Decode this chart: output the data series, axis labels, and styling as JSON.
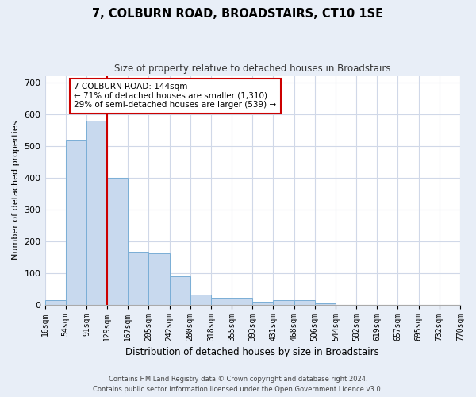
{
  "title": "7, COLBURN ROAD, BROADSTAIRS, CT10 1SE",
  "subtitle": "Size of property relative to detached houses in Broadstairs",
  "xlabel": "Distribution of detached houses by size in Broadstairs",
  "ylabel": "Number of detached properties",
  "bar_values": [
    15,
    520,
    580,
    400,
    165,
    162,
    88,
    32,
    22,
    22,
    10,
    13,
    13,
    5,
    0,
    0,
    0,
    0,
    0,
    0
  ],
  "bin_labels": [
    "16sqm",
    "54sqm",
    "91sqm",
    "129sqm",
    "167sqm",
    "205sqm",
    "242sqm",
    "280sqm",
    "318sqm",
    "355sqm",
    "393sqm",
    "431sqm",
    "468sqm",
    "506sqm",
    "544sqm",
    "582sqm",
    "619sqm",
    "657sqm",
    "695sqm",
    "732sqm",
    "770sqm"
  ],
  "bar_color": "#c8d9ee",
  "bar_edge_color": "#7aaed6",
  "vline_x_index": 3,
  "vline_color": "#cc0000",
  "annotation_text": "7 COLBURN ROAD: 144sqm\n← 71% of detached houses are smaller (1,310)\n29% of semi-detached houses are larger (539) →",
  "annotation_box_color": "#ffffff",
  "annotation_box_edge": "#cc0000",
  "ylim": [
    0,
    720
  ],
  "yticks": [
    0,
    100,
    200,
    300,
    400,
    500,
    600,
    700
  ],
  "footer_line1": "Contains HM Land Registry data © Crown copyright and database right 2024.",
  "footer_line2": "Contains public sector information licensed under the Open Government Licence v3.0.",
  "outer_bg_color": "#e8eef7",
  "plot_bg_color": "#ffffff",
  "grid_color": "#d0d8e8"
}
